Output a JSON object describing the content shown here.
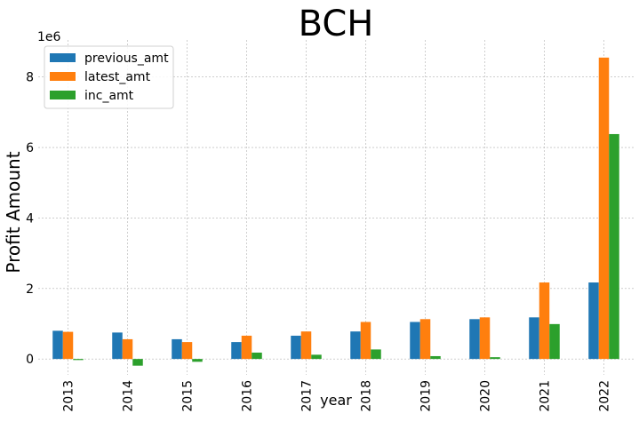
{
  "chart_data": {
    "type": "bar",
    "title": "BCH",
    "xlabel": "year",
    "ylabel": "Profit Amount",
    "y_offset_label": "1e6",
    "categories": [
      "2013",
      "2014",
      "2015",
      "2016",
      "2017",
      "2018",
      "2019",
      "2020",
      "2021",
      "2022"
    ],
    "series": [
      {
        "name": "previous_amt",
        "color": "#1f77b4",
        "values": [
          0.8,
          0.75,
          0.56,
          0.48,
          0.66,
          0.78,
          1.05,
          1.13,
          1.18,
          2.17
        ]
      },
      {
        "name": "latest_amt",
        "color": "#ff7f0e",
        "values": [
          0.77,
          0.56,
          0.48,
          0.66,
          0.78,
          1.05,
          1.13,
          1.18,
          2.17,
          8.55
        ]
      },
      {
        "name": "inc_amt",
        "color": "#2ca02c",
        "values": [
          -0.03,
          -0.19,
          -0.08,
          0.18,
          0.12,
          0.27,
          0.08,
          0.05,
          0.99,
          6.38
        ]
      }
    ],
    "yticks": [
      0,
      2,
      4,
      6,
      8
    ],
    "ylim": [
      -0.45,
      9.05
    ],
    "grid": true,
    "legend_position": "top-left"
  }
}
